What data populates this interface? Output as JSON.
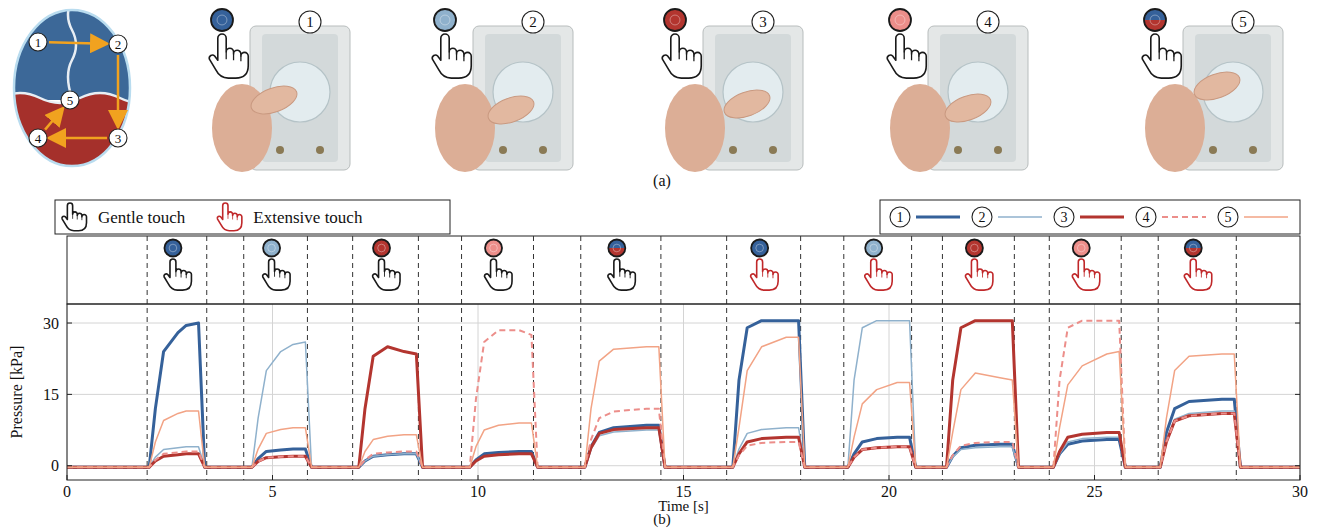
{
  "panel_a": {
    "label": "(a)",
    "diagram_points": [
      "1",
      "2",
      "3",
      "4",
      "5"
    ],
    "steps": [
      "1",
      "2",
      "3",
      "4",
      "5"
    ]
  },
  "chart_data": {
    "type": "line",
    "panel_label": "(b)",
    "x_label": "Time [s]",
    "y_label": "Pressure [kPa]",
    "touch_types": [
      "Gentle touch",
      "Extensive touch"
    ],
    "events": [
      {
        "start": 1.95,
        "end": 3.4,
        "series": 0,
        "touch": 0
      },
      {
        "start": 4.3,
        "end": 5.85,
        "series": 1,
        "touch": 0
      },
      {
        "start": 6.95,
        "end": 8.55,
        "series": 2,
        "touch": 0
      },
      {
        "start": 9.6,
        "end": 11.35,
        "series": 3,
        "touch": 0
      },
      {
        "start": 12.5,
        "end": 14.45,
        "series": 4,
        "touch": 0
      },
      {
        "start": 16.05,
        "end": 17.85,
        "series": 0,
        "touch": 1
      },
      {
        "start": 18.9,
        "end": 20.55,
        "series": 1,
        "touch": 1
      },
      {
        "start": 21.3,
        "end": 23.05,
        "series": 2,
        "touch": 1
      },
      {
        "start": 23.9,
        "end": 25.65,
        "series": 3,
        "touch": 1
      },
      {
        "start": 26.55,
        "end": 28.45,
        "series": 4,
        "touch": 1
      }
    ],
    "x": [
      0,
      2.0,
      2.15,
      2.35,
      2.7,
      2.9,
      3.2,
      3.35,
      4.5,
      4.65,
      4.85,
      5.2,
      5.5,
      5.8,
      5.95,
      7.1,
      7.25,
      7.45,
      7.8,
      8.2,
      8.5,
      8.65,
      9.8,
      9.95,
      10.15,
      10.5,
      11.0,
      11.3,
      11.45,
      12.6,
      12.75,
      12.95,
      13.3,
      14.1,
      14.4,
      14.55,
      16.2,
      16.35,
      16.55,
      16.9,
      17.5,
      17.8,
      17.95,
      19.0,
      19.15,
      19.35,
      19.7,
      20.2,
      20.5,
      20.65,
      21.4,
      21.55,
      21.75,
      22.1,
      22.7,
      23.0,
      23.15,
      24.0,
      24.15,
      24.35,
      24.7,
      25.3,
      25.6,
      25.75,
      26.6,
      26.75,
      26.95,
      27.3,
      28.1,
      28.4,
      28.55,
      30
    ],
    "series": [
      {
        "name": "1",
        "color": "#35619a",
        "line_style": "solid",
        "values": [
          -0.3,
          -0.3,
          12,
          24,
          28,
          29.5,
          30,
          -0.3,
          -0.3,
          1.5,
          3,
          3.3,
          3.5,
          3.5,
          -0.3,
          -0.3,
          1,
          2,
          2.3,
          2.5,
          2.5,
          -0.3,
          -0.3,
          1.2,
          2.5,
          2.8,
          3,
          3,
          -0.3,
          -0.3,
          4,
          7,
          8,
          8.5,
          8.5,
          -0.3,
          -0.3,
          18,
          29,
          30.5,
          30.5,
          30.5,
          -0.3,
          -0.3,
          2.5,
          5,
          5.7,
          6,
          6,
          -0.3,
          -0.3,
          2,
          3.8,
          4.3,
          4.5,
          4.5,
          -0.3,
          -0.3,
          2.5,
          4.5,
          5.2,
          5.5,
          5.5,
          -0.3,
          -0.3,
          7,
          12,
          13.5,
          14,
          14,
          -0.3,
          -0.3
        ]
      },
      {
        "name": "2",
        "color": "#8fb1cc",
        "line_style": "solid",
        "values": [
          -0.3,
          -0.3,
          1.8,
          3.4,
          3.8,
          4,
          4,
          -0.3,
          -0.3,
          10,
          20,
          24,
          25.5,
          26,
          -0.3,
          -0.3,
          1,
          2,
          2.3,
          2.5,
          2.5,
          -0.3,
          -0.3,
          1,
          2,
          2.3,
          2.5,
          2.5,
          -0.3,
          -0.3,
          3.5,
          6.3,
          7.1,
          7.5,
          7.5,
          -0.3,
          -0.3,
          3.5,
          6.8,
          7.6,
          8,
          8,
          -0.3,
          -0.3,
          18,
          29,
          30.5,
          30.5,
          30.5,
          -0.3,
          -0.3,
          1.8,
          3.4,
          3.8,
          4,
          4,
          -0.3,
          -0.3,
          2.5,
          5,
          5.7,
          6,
          6,
          -0.3,
          -0.3,
          5.5,
          9.8,
          11,
          11.5,
          11.5,
          -0.3,
          -0.3
        ]
      },
      {
        "name": "3",
        "color": "#b3352f",
        "line_style": "solid",
        "values": [
          -0.3,
          -0.3,
          1,
          2,
          2.3,
          2.5,
          2.5,
          -0.3,
          -0.3,
          0.9,
          1.7,
          1.9,
          2,
          2,
          -0.3,
          -0.3,
          12,
          23,
          25,
          24,
          23.5,
          -0.3,
          -0.3,
          1,
          2,
          2.3,
          2.5,
          2.5,
          -0.3,
          -0.3,
          3.8,
          6.8,
          7.6,
          8,
          8,
          -0.3,
          -0.3,
          2.5,
          5,
          5.7,
          6,
          6,
          -0.3,
          -0.3,
          1.8,
          3.4,
          3.8,
          4,
          4,
          -0.3,
          -0.3,
          18,
          29,
          30.5,
          30.5,
          30.5,
          -0.3,
          -0.3,
          3,
          6,
          6.6,
          7,
          7,
          -0.3,
          -0.3,
          5,
          9.4,
          10.5,
          11,
          11,
          -0.3,
          -0.3
        ]
      },
      {
        "name": "4",
        "color": "#ec8e8a",
        "line_style": "dashed",
        "values": [
          -0.3,
          -0.3,
          1.2,
          2.5,
          2.8,
          3,
          3,
          -0.3,
          -0.3,
          0.9,
          1.7,
          1.9,
          2,
          2,
          -0.3,
          -0.3,
          1.2,
          2.5,
          2.8,
          3,
          3,
          -0.3,
          -0.3,
          14,
          26,
          28.5,
          28.5,
          27.5,
          -0.3,
          -0.3,
          5.5,
          10,
          11.4,
          12,
          12,
          -0.3,
          -0.3,
          2.2,
          4.2,
          4.8,
          5,
          5,
          -0.3,
          -0.3,
          1.8,
          3.4,
          3.8,
          4,
          4,
          -0.3,
          -0.3,
          2.2,
          4.2,
          4.8,
          5,
          5,
          -0.3,
          -0.3,
          18,
          29,
          30.5,
          30.5,
          30.5,
          -0.3,
          -0.3,
          5,
          9.4,
          10.5,
          11,
          11,
          -0.3,
          -0.3
        ]
      },
      {
        "name": "5",
        "color": "#f2a385",
        "line_style": "solid",
        "values": [
          -0.3,
          -0.3,
          5,
          9.5,
          11,
          11.5,
          11.5,
          -0.3,
          -0.3,
          3.5,
          6.8,
          7.6,
          8,
          8,
          -0.3,
          -0.3,
          3,
          5.5,
          6.2,
          6.5,
          6.5,
          -0.3,
          -0.3,
          4,
          7.5,
          8.5,
          9,
          9,
          -0.3,
          -0.3,
          12,
          22,
          24.5,
          25,
          25,
          -0.3,
          -0.3,
          8,
          20,
          25,
          27,
          27,
          -0.3,
          -0.3,
          6,
          13,
          16,
          17.5,
          17.5,
          -0.3,
          -0.3,
          7,
          16,
          19.5,
          18.5,
          18,
          -0.3,
          -0.3,
          8,
          17,
          21,
          23.5,
          24,
          -0.3,
          -0.3,
          10,
          20,
          23,
          23.5,
          23.5,
          -0.3,
          -0.3
        ]
      }
    ],
    "xlim": [
      0,
      30
    ],
    "ylim": [
      -3,
      34
    ],
    "xticks": [
      0,
      5,
      10,
      15,
      20,
      25,
      30
    ],
    "yticks": [
      0,
      15,
      30
    ],
    "grid": true,
    "legend": "upper right"
  }
}
